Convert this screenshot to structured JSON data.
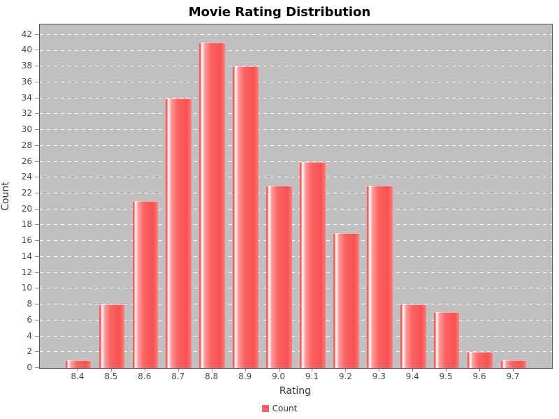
{
  "chart_data": {
    "type": "bar",
    "title": "Movie Rating Distribution",
    "categories": [
      "8.4",
      "8.5",
      "8.6",
      "8.7",
      "8.8",
      "8.9",
      "9.0",
      "9.1",
      "9.2",
      "9.3",
      "9.4",
      "9.5",
      "9.6",
      "9.7"
    ],
    "series": [
      {
        "name": "Count",
        "values": [
          1,
          8,
          21,
          34,
          41,
          38,
          23,
          26,
          17,
          23,
          8,
          7,
          2,
          1
        ]
      }
    ],
    "xlabel": "Rating",
    "ylabel": "Count",
    "ylim": [
      0,
      43.3
    ],
    "ytick_step": 2,
    "ytick_top": 42,
    "grid": "horizontal white dashed",
    "legend_position": "bottom-center",
    "legend_label": "Count"
  },
  "colors": {
    "bar_base": "#fb5f5f",
    "bar_stripe_highlight": "#fff6f6",
    "plot_background": "#c0c0c0",
    "gridline": "#ffffff",
    "plot_border": "#545454",
    "tick_label": "#4a4a4a",
    "axis_label": "#333333",
    "title_text": "#000000",
    "page_background": "#ffffff"
  }
}
